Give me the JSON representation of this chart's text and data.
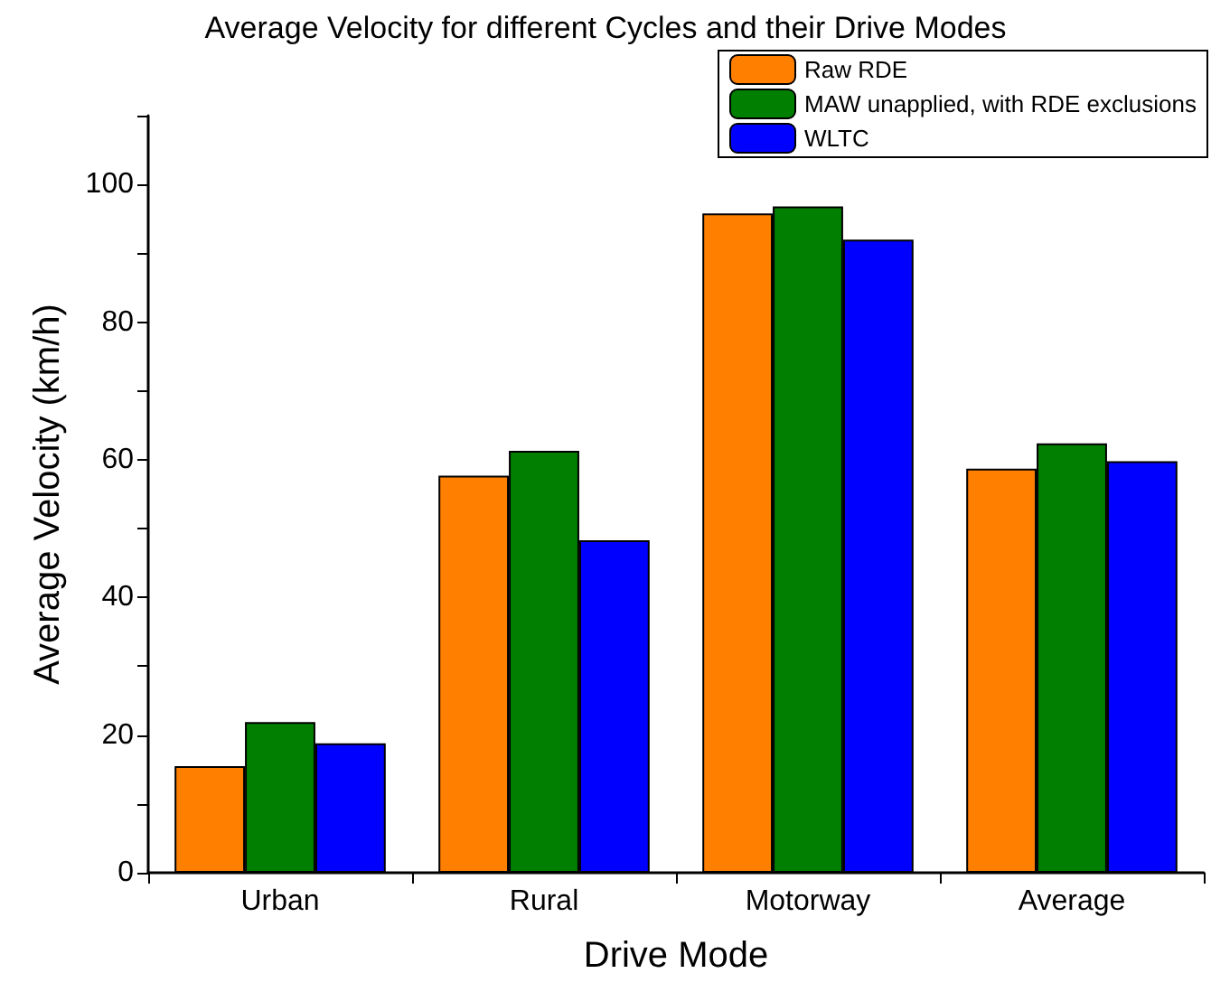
{
  "chart_data": {
    "type": "bar",
    "title": "Average Velocity for different Cycles and their Drive Modes",
    "xlabel": "Drive Mode",
    "ylabel": "Average Velocity (km/h)",
    "categories": [
      "Urban",
      "Rural",
      "Motorway",
      "Average"
    ],
    "series": [
      {
        "name": "Raw RDE",
        "color": "#ff7f00",
        "values": [
          15.5,
          57.7,
          95.8,
          58.7
        ]
      },
      {
        "name": "MAW unapplied, with RDE exclusions",
        "color": "#007f00",
        "values": [
          21.9,
          61.3,
          96.8,
          62.4
        ]
      },
      {
        "name": "WLTC",
        "color": "#0000ff",
        "values": [
          18.8,
          48.3,
          92.0,
          59.8
        ]
      }
    ],
    "ylim": [
      0,
      110
    ],
    "yticks": [
      0,
      {
        "value": 10,
        "label": null
      },
      20,
      {
        "value": 30,
        "label": null
      },
      40,
      {
        "value": 50,
        "label": null
      },
      60,
      {
        "value": 70,
        "label": null
      },
      80,
      {
        "value": 90,
        "label": null
      },
      100,
      {
        "value": 110,
        "label": null
      }
    ],
    "grid": false,
    "legend": "top right"
  }
}
